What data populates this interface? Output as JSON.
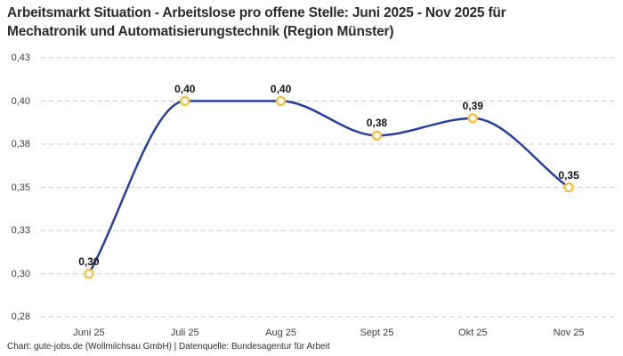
{
  "title": {
    "line1": "Arbeitsmarkt Situation - Arbeitslose pro offene Stelle: Juni 2025 - Nov 2025 für",
    "line2": "Mechatronik und Automatisierungstechnik (Region Münster)"
  },
  "footer": {
    "text": "Chart: gute-jobs.de (Wollmilchsau GmbH) | Datenquelle: Bundesagentur für Arbeit"
  },
  "chart_data": {
    "type": "line",
    "title": "Arbeitsmarkt Situation - Arbeitslose pro offene Stelle: Juni 2025 - Nov 2025 für Mechatronik und Automatisierungstechnik (Region Münster)",
    "categories": [
      "Juni 25",
      "Juli 25",
      "Aug 25",
      "Sept 25",
      "Okt 25",
      "Nov 25"
    ],
    "values": [
      0.3,
      0.4,
      0.4,
      0.38,
      0.39,
      0.35
    ],
    "value_labels": [
      "0,30",
      "0,40",
      "0,40",
      "0,38",
      "0,39",
      "0,35"
    ],
    "y_ticks": [
      {
        "value": 0.275,
        "label": "0,28"
      },
      {
        "value": 0.3,
        "label": "0,30"
      },
      {
        "value": 0.325,
        "label": "0,33"
      },
      {
        "value": 0.35,
        "label": "0,35"
      },
      {
        "value": 0.375,
        "label": "0,38"
      },
      {
        "value": 0.4,
        "label": "0,40"
      },
      {
        "value": 0.425,
        "label": "0,43"
      }
    ],
    "ylim": [
      0.275,
      0.425
    ],
    "xlabel": "",
    "ylabel": "",
    "grid": "horizontal-dashed",
    "legend": "none",
    "colors": {
      "line": "#263f9e",
      "marker_stroke": "#fbc13d",
      "marker_fill": "#ffffff",
      "gridline": "#c9c9c9",
      "tick_text": "#3d3d3d",
      "data_label_text": "#111111"
    }
  }
}
